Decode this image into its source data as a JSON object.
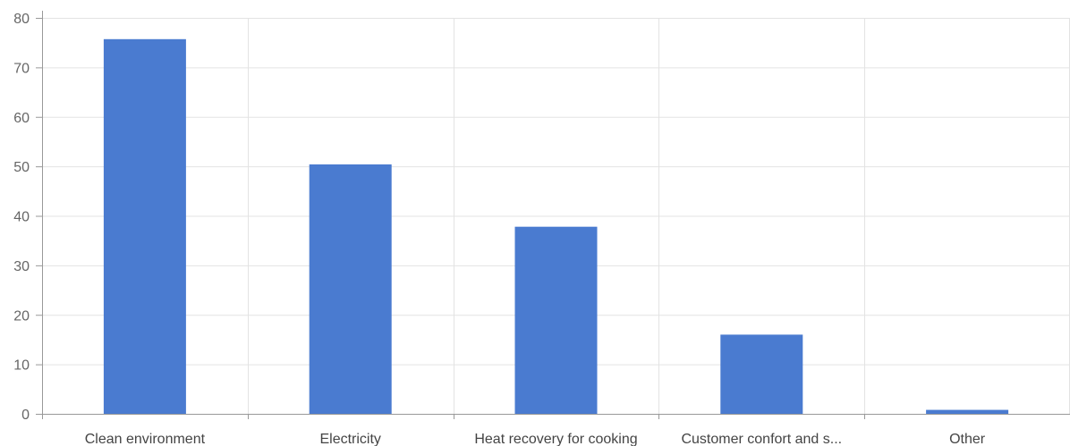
{
  "chart_data": {
    "type": "bar",
    "categories": [
      "Clean environment",
      "Electricity",
      "Heat recovery for cooking",
      "Customer confort and s...",
      "Other"
    ],
    "values": [
      75.7,
      50.4,
      37.8,
      16.0,
      0.8
    ],
    "title": "",
    "xlabel": "",
    "ylabel": "",
    "ylim": [
      0,
      80
    ],
    "yticks": [
      "0",
      "10",
      "20",
      "30",
      "40",
      "50",
      "60",
      "70",
      "80"
    ],
    "grid": true,
    "legend": "none",
    "bar_color": "#4a7bd0"
  }
}
